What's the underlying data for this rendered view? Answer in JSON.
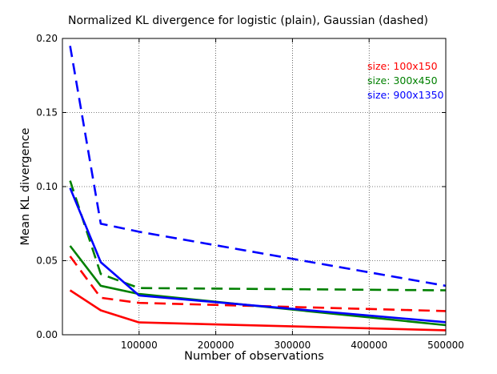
{
  "chart_data": {
    "type": "line",
    "title": "Normalized KL divergence for logistic (plain), Gaussian (dashed)",
    "xlabel": "Number of observations",
    "ylabel": "Mean KL divergence",
    "xlim": [
      0,
      500000
    ],
    "ylim": [
      0,
      0.2
    ],
    "grid": true,
    "legend_placement": "top-right",
    "x_ticks": [
      {
        "value": 100000,
        "label": "100000"
      },
      {
        "value": 200000,
        "label": "200000"
      },
      {
        "value": 300000,
        "label": "300000"
      },
      {
        "value": 400000,
        "label": "400000"
      },
      {
        "value": 500000,
        "label": "500000"
      }
    ],
    "y_ticks": [
      {
        "value": 0.0,
        "label": "0.00"
      },
      {
        "value": 0.05,
        "label": "0.05"
      },
      {
        "value": 0.1,
        "label": "0.10"
      },
      {
        "value": 0.15,
        "label": "0.15"
      },
      {
        "value": 0.2,
        "label": "0.20"
      }
    ],
    "annotations": [
      {
        "text": "size: 100x150",
        "color": "#ff0000"
      },
      {
        "text": "size: 300x450",
        "color": "#008000"
      },
      {
        "text": "size: 900x1350",
        "color": "#0000ff"
      }
    ],
    "series": [
      {
        "size_label": "size: 100x150",
        "model": "logistic",
        "style": "solid",
        "color": "#ff0000",
        "x": [
          10000,
          50000,
          100000,
          500000
        ],
        "y": [
          0.03,
          0.0165,
          0.0083,
          0.003
        ]
      },
      {
        "size_label": "size: 100x150",
        "model": "Gaussian",
        "style": "dashed",
        "color": "#ff0000",
        "x": [
          10000,
          50000,
          100000,
          500000
        ],
        "y": [
          0.053,
          0.025,
          0.0215,
          0.016
        ]
      },
      {
        "size_label": "size: 300x450",
        "model": "logistic",
        "style": "solid",
        "color": "#008000",
        "x": [
          10000,
          50000,
          100000,
          500000
        ],
        "y": [
          0.06,
          0.033,
          0.0275,
          0.0065
        ]
      },
      {
        "size_label": "size: 300x450",
        "model": "Gaussian",
        "style": "dashed",
        "color": "#008000",
        "x": [
          10000,
          50000,
          100000,
          500000
        ],
        "y": [
          0.104,
          0.041,
          0.0315,
          0.03
        ]
      },
      {
        "size_label": "size: 900x1350",
        "model": "logistic",
        "style": "solid",
        "color": "#0000ff",
        "x": [
          10000,
          50000,
          100000,
          500000
        ],
        "y": [
          0.099,
          0.049,
          0.0265,
          0.0085
        ]
      },
      {
        "size_label": "size: 900x1350",
        "model": "Gaussian",
        "style": "dashed",
        "color": "#0000ff",
        "x": [
          10000,
          50000,
          100000,
          500000
        ],
        "y": [
          0.195,
          0.075,
          0.0695,
          0.033
        ]
      }
    ]
  }
}
